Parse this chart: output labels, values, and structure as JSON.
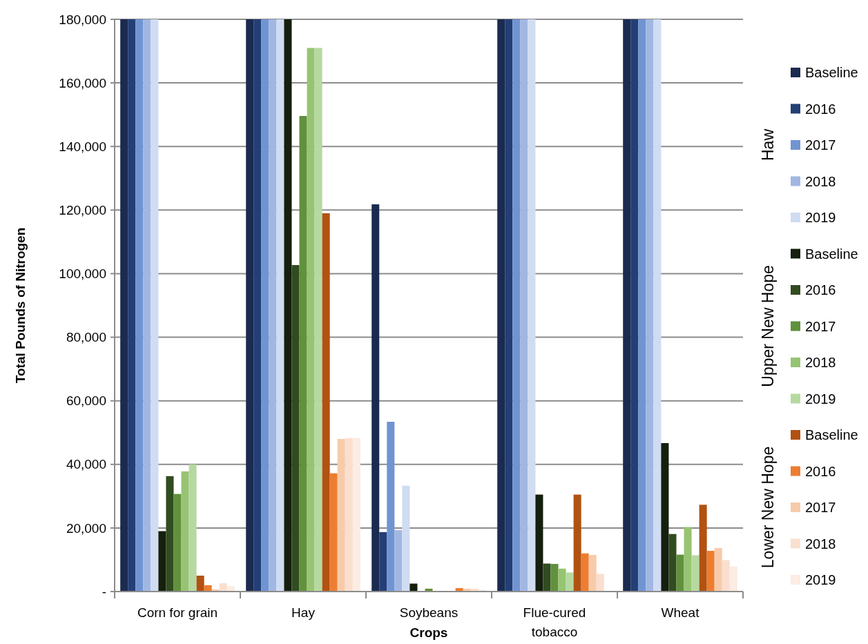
{
  "chart_data": {
    "type": "bar",
    "xlabel": "Crops",
    "ylabel": "Total Pounds of Nitrogen",
    "categories": [
      "Corn for grain",
      "Hay",
      "Soybeans",
      "Flue-cured tobacco",
      "Wheat"
    ],
    "ylim": [
      0,
      180000
    ],
    "yticks": [
      {
        "value": 0,
        "label": "-"
      },
      {
        "value": 20000,
        "label": "20,000"
      },
      {
        "value": 40000,
        "label": "40,000"
      },
      {
        "value": 60000,
        "label": "60,000"
      },
      {
        "value": 80000,
        "label": "80,000"
      },
      {
        "value": 100000,
        "label": "100,000"
      },
      {
        "value": 120000,
        "label": "120,000"
      },
      {
        "value": 140000,
        "label": "140,000"
      },
      {
        "value": 160000,
        "label": "160,000"
      },
      {
        "value": 180000,
        "label": "180,000"
      }
    ],
    "grid": "y",
    "legend": "right",
    "annotations": [
      "Haw",
      "Upper New Hope",
      "Lower New Hope"
    ],
    "series": [
      {
        "name": "Baseline",
        "color": "#1b2b50",
        "values": [
          180000,
          180000,
          121800,
          180000,
          180000
        ]
      },
      {
        "name": "2016",
        "color": "#243f76",
        "values": [
          180000,
          180000,
          18700,
          180000,
          180000
        ]
      },
      {
        "name": "2017",
        "color": "#7094d2",
        "values": [
          180000,
          180000,
          53400,
          180000,
          180000
        ]
      },
      {
        "name": "2018",
        "color": "#a1b7e2",
        "values": [
          180000,
          180000,
          19300,
          180000,
          180000
        ]
      },
      {
        "name": "2019",
        "color": "#cfdcf2",
        "values": [
          180000,
          180000,
          33300,
          180000,
          180000
        ]
      },
      {
        "name": "Baseline",
        "color": "#141f0d",
        "values": [
          19000,
          180000,
          2500,
          30500,
          46700
        ]
      },
      {
        "name": "2016",
        "color": "#314c20",
        "values": [
          36300,
          102700,
          200,
          8800,
          18100
        ]
      },
      {
        "name": "2017",
        "color": "#61913c",
        "values": [
          30700,
          149600,
          900,
          8700,
          11600
        ]
      },
      {
        "name": "2018",
        "color": "#97c473",
        "values": [
          37800,
          171000,
          null,
          7200,
          20300
        ]
      },
      {
        "name": "2019",
        "color": "#b6d9a0",
        "values": [
          40000,
          171000,
          null,
          6000,
          11400
        ]
      },
      {
        "name": "Baseline",
        "color": "#b15212",
        "values": [
          5000,
          119000,
          0,
          30500,
          27300
        ]
      },
      {
        "name": "2016",
        "color": "#ed7d31",
        "values": [
          2000,
          37200,
          1100,
          12000,
          12800
        ]
      },
      {
        "name": "2017",
        "color": "#f7cbaa",
        "values": [
          700,
          48000,
          900,
          11500,
          13700
        ]
      },
      {
        "name": "2018",
        "color": "#fadfcf",
        "values": [
          2600,
          48300,
          900,
          5600,
          9900
        ]
      },
      {
        "name": "2019",
        "color": "#fcece3",
        "values": [
          1700,
          48300,
          600,
          0,
          7900
        ]
      }
    ]
  }
}
